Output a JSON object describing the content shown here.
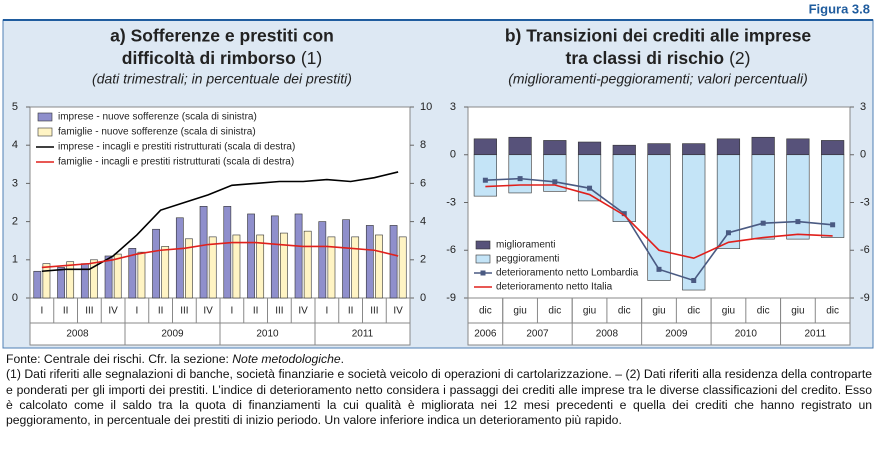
{
  "figure_label": "Figura 3.8",
  "chart_data": [
    {
      "type": "combo",
      "title_line1": "a) Sofferenze e prestiti con",
      "title_line2": "difficoltà di rimborso",
      "title_note": "(1)",
      "subtitle": "(dati trimestrali; in percentuale dei prestiti)",
      "groups": [
        {
          "label": "2008",
          "categories": [
            "I",
            "II",
            "III",
            "IV"
          ]
        },
        {
          "label": "2009",
          "categories": [
            "I",
            "II",
            "III",
            "IV"
          ]
        },
        {
          "label": "2010",
          "categories": [
            "I",
            "II",
            "III",
            "IV"
          ]
        },
        {
          "label": "2011",
          "categories": [
            "I",
            "II",
            "III",
            "IV"
          ]
        }
      ],
      "ylim": [
        0,
        5
      ],
      "yticks": [
        0,
        1,
        2,
        3,
        4,
        5
      ],
      "y2lim": [
        0,
        10
      ],
      "y2ticks": [
        0,
        2,
        4,
        6,
        8,
        10
      ],
      "grid": false,
      "legend": "upper left",
      "series": [
        {
          "name": "imprese - nuove sofferenze (scala di sinistra)",
          "type": "bar",
          "color": "#8f8fcc",
          "values": [
            0.7,
            0.8,
            0.9,
            1.1,
            1.3,
            1.8,
            2.1,
            2.4,
            2.4,
            2.2,
            2.15,
            2.2,
            2.0,
            2.05,
            1.9,
            1.9
          ]
        },
        {
          "name": "famiglie - nuove sofferenze (scala di sinistra)",
          "type": "bar",
          "color": "#fff4c4",
          "values": [
            0.9,
            0.95,
            1.0,
            1.15,
            1.2,
            1.35,
            1.55,
            1.6,
            1.65,
            1.65,
            1.7,
            1.75,
            1.6,
            1.6,
            1.65,
            1.6
          ]
        },
        {
          "name": "imprese - incagli e prestiti ristrutturati (scala di destra)",
          "type": "line",
          "axis": "y2",
          "color": "#000000",
          "values": [
            1.4,
            1.5,
            1.5,
            2.2,
            3.3,
            4.6,
            5.0,
            5.4,
            5.9,
            6.0,
            6.1,
            6.1,
            6.2,
            6.1,
            6.3,
            6.6
          ]
        },
        {
          "name": "famiglie - incagli e prestiti ristrutturati (scala di destra)",
          "type": "line",
          "axis": "y2",
          "color": "#e0201c",
          "values": [
            1.6,
            1.7,
            1.8,
            2.0,
            2.3,
            2.5,
            2.6,
            2.8,
            2.9,
            2.9,
            2.8,
            2.7,
            2.7,
            2.6,
            2.5,
            2.2
          ]
        }
      ]
    },
    {
      "type": "combo",
      "title_line1": "b) Transizioni dei crediti alle imprese",
      "title_line2": "tra classi di rischio",
      "title_note": "(2)",
      "subtitle": "(miglioramenti-peggioramenti; valori percentuali)",
      "groups": [
        {
          "label": "2006",
          "categories": [
            "dic"
          ]
        },
        {
          "label": "2007",
          "categories": [
            "giu",
            "dic"
          ]
        },
        {
          "label": "2008",
          "categories": [
            "giu",
            "dic"
          ]
        },
        {
          "label": "2009",
          "categories": [
            "giu",
            "dic"
          ]
        },
        {
          "label": "2010",
          "categories": [
            "giu",
            "dic"
          ]
        },
        {
          "label": "2011",
          "categories": [
            "giu",
            "dic"
          ]
        }
      ],
      "ylim": [
        -9,
        3
      ],
      "yticks": [
        -9,
        -6,
        -3,
        0,
        3
      ],
      "y2lim": [
        -9,
        3
      ],
      "y2ticks": [
        -9,
        -6,
        -3,
        0,
        3
      ],
      "grid": false,
      "legend": "lower left",
      "series": [
        {
          "name": "miglioramenti",
          "type": "bar",
          "color": "#57527a",
          "values": [
            1.0,
            1.1,
            0.9,
            0.8,
            0.6,
            0.7,
            0.7,
            1.0,
            1.1,
            1.0,
            0.9
          ]
        },
        {
          "name": "peggioramenti",
          "type": "bar",
          "color": "#c4e4f7",
          "values": [
            -2.6,
            -2.4,
            -2.3,
            -2.9,
            -4.2,
            -7.9,
            -8.5,
            -5.9,
            -5.3,
            -5.3,
            -5.2
          ]
        },
        {
          "name": "deterioramento netto Lombardia",
          "type": "line",
          "marker": true,
          "color": "#4a5a82",
          "values": [
            -1.6,
            -1.5,
            -1.7,
            -2.1,
            -3.7,
            -7.2,
            -7.9,
            -4.9,
            -4.3,
            -4.2,
            -4.4
          ]
        },
        {
          "name": "deterioramento netto Italia",
          "type": "line",
          "color": "#e0201c",
          "values": [
            -2.0,
            -1.9,
            -1.9,
            -2.5,
            -3.8,
            -6.0,
            -6.5,
            -5.5,
            -5.2,
            -5.0,
            -5.1
          ]
        }
      ]
    }
  ],
  "footer": {
    "source": "Fonte: Centrale dei rischi. Cfr. la sezione: ",
    "source_italic": "Note metodologiche",
    "source_end": ".",
    "notes": "(1) Dati riferiti alle segnalazioni di banche, società finanziarie e società veicolo di operazioni di cartolarizzazione. – (2) Dati riferiti alla residenza della controparte e ponderati per gli importi dei prestiti. L’indice di deterioramento netto considera i passaggi dei crediti alle imprese tra le diverse classificazioni del credito. Esso è calcolato come il saldo tra la quota di finanziamenti la cui qualità è migliorata nei 12 mesi precedenti e quella dei crediti che hanno registrato un peggioramento, in percentuale dei prestiti di inizio periodo. Un valore inferiore indica un deterioramento più rapido."
  }
}
